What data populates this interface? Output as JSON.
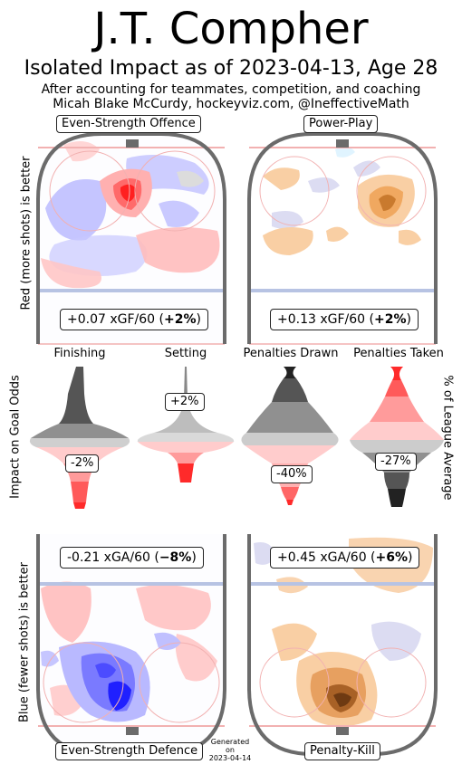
{
  "header": {
    "title": "J.T. Compher",
    "subtitle": "Isolated Impact as of 2023-04-13, Age 28",
    "credit_line1": "After accounting for teammates, competition, and coaching",
    "credit_line2": "Micah Blake McCurdy, hockeyviz.com, @IneffectiveMath"
  },
  "side_labels": {
    "offence": "Red (more shots) is better",
    "middle": "Impact on Goal Odds",
    "defence": "Blue (fewer shots) is better",
    "right": "% of League Average"
  },
  "footer": {
    "generated": [
      "Generated",
      "on",
      "2023-04-14"
    ]
  },
  "colors": {
    "rink": "#6b6b6b",
    "blue_line": "#b7c3e3",
    "red_line": "#f2b1b1",
    "positive": "#ff2a2a",
    "negative": "#2a2aff",
    "pp_orange": "#e8902e"
  },
  "chart_data": [
    {
      "type": "heatmap",
      "panel": "Even-Strength Offence",
      "rate": "+0.07 xGF/60 (",
      "pct": "+2%",
      "pct_close": ")"
    },
    {
      "type": "heatmap",
      "panel": "Power-Play",
      "rate": "+0.13 xGF/60 (",
      "pct": "+2%",
      "pct_close": ")"
    },
    {
      "type": "heatmap",
      "panel": "Even-Strength Defence",
      "rate": "-0.21 xGA/60 (",
      "pct": "−8%",
      "pct_close": ")"
    },
    {
      "type": "heatmap",
      "panel": "Penalty-Kill",
      "rate": "+0.45 xGA/60 (",
      "pct": "+6%",
      "pct_close": ")"
    }
  ],
  "violins": [
    {
      "name": "Finishing",
      "value_label": "-2%",
      "value": -2
    },
    {
      "name": "Setting",
      "value_label": "+2%",
      "value": 2
    },
    {
      "name": "Penalties Drawn",
      "value_label": "-40%",
      "value": -40
    },
    {
      "name": "Penalties Taken",
      "value_label": "-27%",
      "value": -27
    }
  ]
}
